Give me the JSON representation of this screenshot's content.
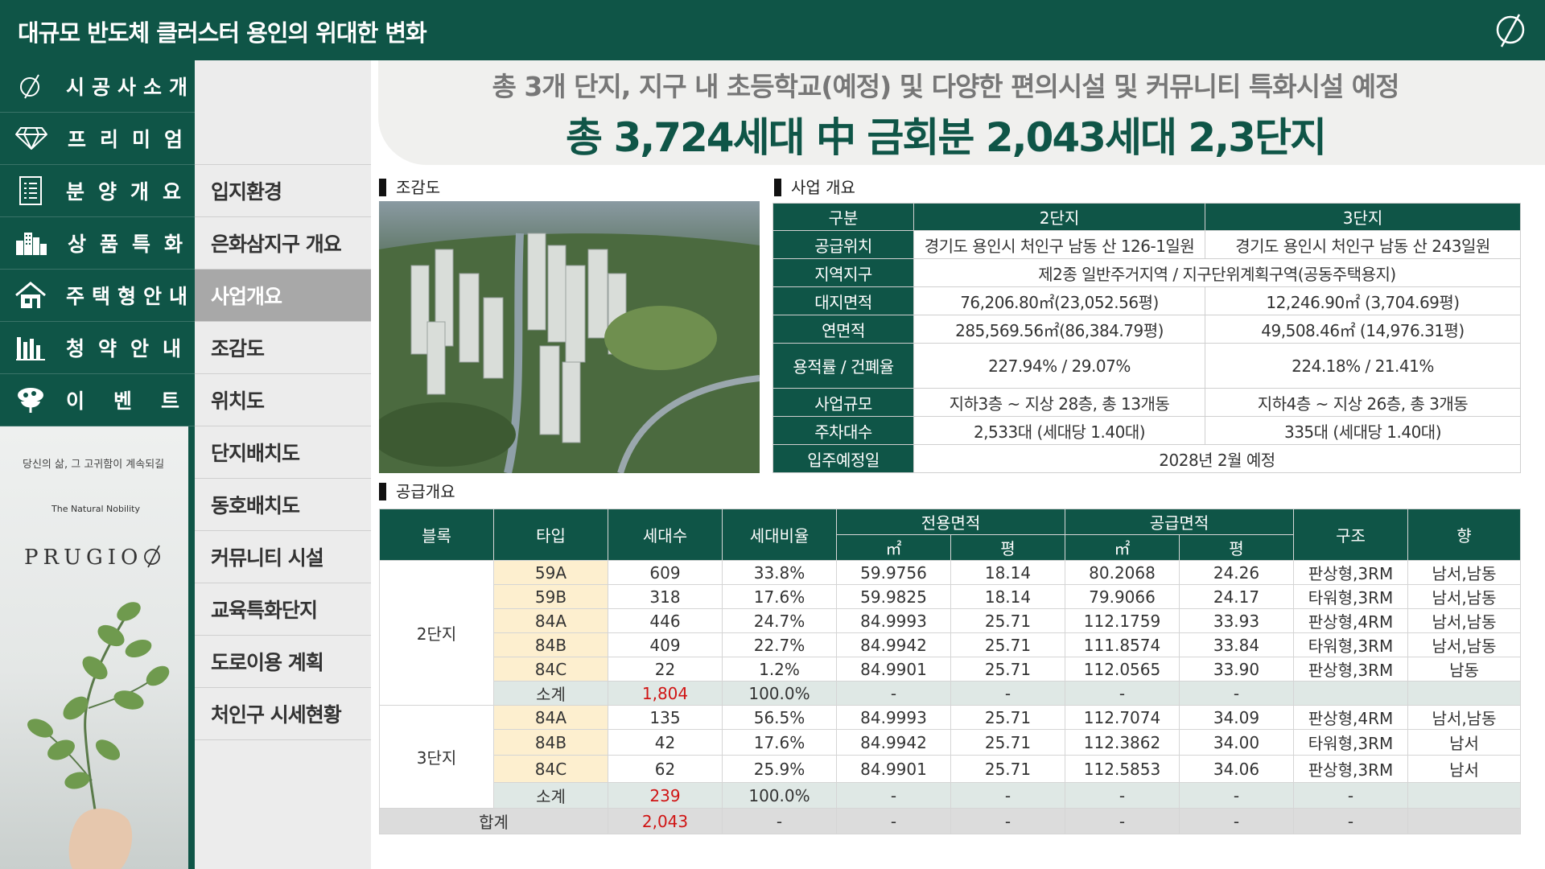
{
  "header": {
    "title": "대규모 반도체 클러스터 용인의 위대한 변화",
    "logo_icon": "prugio-leaf-logo-icon"
  },
  "main_nav": [
    {
      "label": "시공사소개",
      "icon": "leaf-logo-icon"
    },
    {
      "label": "프리미엄",
      "icon": "diamond-icon"
    },
    {
      "label": "분양개요",
      "icon": "document-icon"
    },
    {
      "label": "상품특화",
      "icon": "buildings-icon"
    },
    {
      "label": "주택형안내",
      "icon": "house-icon"
    },
    {
      "label": "청약안내",
      "icon": "bar-chart-icon"
    },
    {
      "label": "이벤트",
      "icon": "gift-icon"
    }
  ],
  "sub_nav": [
    {
      "label": "입지환경",
      "active": false
    },
    {
      "label": "은화삼지구 개요",
      "active": false
    },
    {
      "label": "사업개요",
      "active": true
    },
    {
      "label": "조감도",
      "active": false
    },
    {
      "label": "위치도",
      "active": false
    },
    {
      "label": "단지배치도",
      "active": false
    },
    {
      "label": "동호배치도",
      "active": false
    },
    {
      "label": "커뮤니티 시설",
      "active": false
    },
    {
      "label": "교육특화단지",
      "active": false
    },
    {
      "label": "도로이용 계획",
      "active": false
    },
    {
      "label": "처인구 시세현황",
      "active": false
    }
  ],
  "brand": {
    "slogan": "당신의 삶, 그 고귀함이 계속되길",
    "tagline": "The Natural Nobility",
    "name": "PRUGIO"
  },
  "headline": {
    "sub": "총 3개 단지, 지구 내 초등학교(예정) 및 다양한 편의시설 및 커뮤니티 특화시설 예정",
    "main": "총 3,724세대 中 금회분 2,043세대 2,3단지"
  },
  "sections": {
    "aerial": "조감도",
    "business": "사업 개요",
    "supply": "공급개요"
  },
  "business": {
    "columns": [
      "구분",
      "2단지",
      "3단지"
    ],
    "rows": [
      {
        "label": "공급위치",
        "d2": "경기도 용인시 처인구 남동 산 126-1일원",
        "d3": "경기도 용인시 처인구 남동 산 243일원"
      },
      {
        "label": "지역지구",
        "merged": "제2종 일반주거지역 / 지구단위계획구역(공동주택용지)"
      },
      {
        "label": "대지면적",
        "d2": "76,206.80㎡(23,052.56평)",
        "d3": "12,246.90㎡ (3,704.69평)"
      },
      {
        "label": "연면적",
        "d2": "285,569.56㎡(86,384.79평)",
        "d3": "49,508.46㎡  (14,976.31평)"
      },
      {
        "label": "용적률 / 건폐율",
        "d2": "227.94% / 29.07%",
        "d3": "224.18% / 21.41%",
        "tall": true
      },
      {
        "label": "사업규모",
        "d2": "지하3층 ~ 지상 28층, 총 13개동",
        "d3": "지하4층 ~ 지상 26층, 총 3개동"
      },
      {
        "label": "주차대수",
        "d2": "2,533대 (세대당 1.40대)",
        "d3": "335대 (세대당 1.40대)"
      },
      {
        "label": "입주예정일",
        "merged": "2028년 2월 예정"
      }
    ]
  },
  "supply": {
    "headers": {
      "block": "블록",
      "type": "타입",
      "households": "세대수",
      "ratio": "세대비율",
      "exclusive": "전용면적",
      "supplied": "공급면적",
      "m2": "㎡",
      "pyeong": "평",
      "structure": "구조",
      "direction": "향"
    },
    "blocks": [
      {
        "name": "2단지",
        "rows": [
          {
            "type": "59A",
            "households": "609",
            "ratio": "33.8%",
            "ex_m2": "59.9756",
            "ex_py": "18.14",
            "sup_m2": "80.2068",
            "sup_py": "24.26",
            "structure": "판상형,3RM",
            "direction": "남서,남동"
          },
          {
            "type": "59B",
            "households": "318",
            "ratio": "17.6%",
            "ex_m2": "59.9825",
            "ex_py": "18.14",
            "sup_m2": "79.9066",
            "sup_py": "24.17",
            "structure": "타워형,3RM",
            "direction": "남서,남동"
          },
          {
            "type": "84A",
            "households": "446",
            "ratio": "24.7%",
            "ex_m2": "84.9993",
            "ex_py": "25.71",
            "sup_m2": "112.1759",
            "sup_py": "33.93",
            "structure": "판상형,4RM",
            "direction": "남서,남동"
          },
          {
            "type": "84B",
            "households": "409",
            "ratio": "22.7%",
            "ex_m2": "84.9942",
            "ex_py": "25.71",
            "sup_m2": "111.8574",
            "sup_py": "33.84",
            "structure": "타워형,3RM",
            "direction": "남서,남동"
          },
          {
            "type": "84C",
            "households": "22",
            "ratio": "1.2%",
            "ex_m2": "84.9901",
            "ex_py": "25.71",
            "sup_m2": "112.0565",
            "sup_py": "33.90",
            "structure": "판상형,3RM",
            "direction": "남동"
          }
        ],
        "subtotal": {
          "label": "소계",
          "households": "1,804",
          "ratio": "100.0%",
          "dash": "-"
        }
      },
      {
        "name": "3단지",
        "rows": [
          {
            "type": "84A",
            "households": "135",
            "ratio": "56.5%",
            "ex_m2": "84.9993",
            "ex_py": "25.71",
            "sup_m2": "112.7074",
            "sup_py": "34.09",
            "structure": "판상형,4RM",
            "direction": "남서,남동"
          },
          {
            "type": "84B",
            "households": "42",
            "ratio": "17.6%",
            "ex_m2": "84.9942",
            "ex_py": "25.71",
            "sup_m2": "112.3862",
            "sup_py": "34.00",
            "structure": "타워형,3RM",
            "direction": "남서"
          },
          {
            "type": "84C",
            "households": "62",
            "ratio": "25.9%",
            "ex_m2": "84.9901",
            "ex_py": "25.71",
            "sup_m2": "112.5853",
            "sup_py": "34.06",
            "structure": "판상형,3RM",
            "direction": "남서"
          }
        ],
        "subtotal": {
          "label": "소계",
          "households": "239",
          "ratio": "100.0%",
          "dash": "-"
        }
      }
    ],
    "total": {
      "label": "합계",
      "households": "2,043",
      "dash": "-"
    }
  },
  "colors": {
    "brand_green": "#0f5547",
    "type_highlight": "#fdefcf",
    "subtotal_bg": "#dfe8e5",
    "total_bg": "#dcdcdc",
    "emphasis_red": "#d01414"
  }
}
